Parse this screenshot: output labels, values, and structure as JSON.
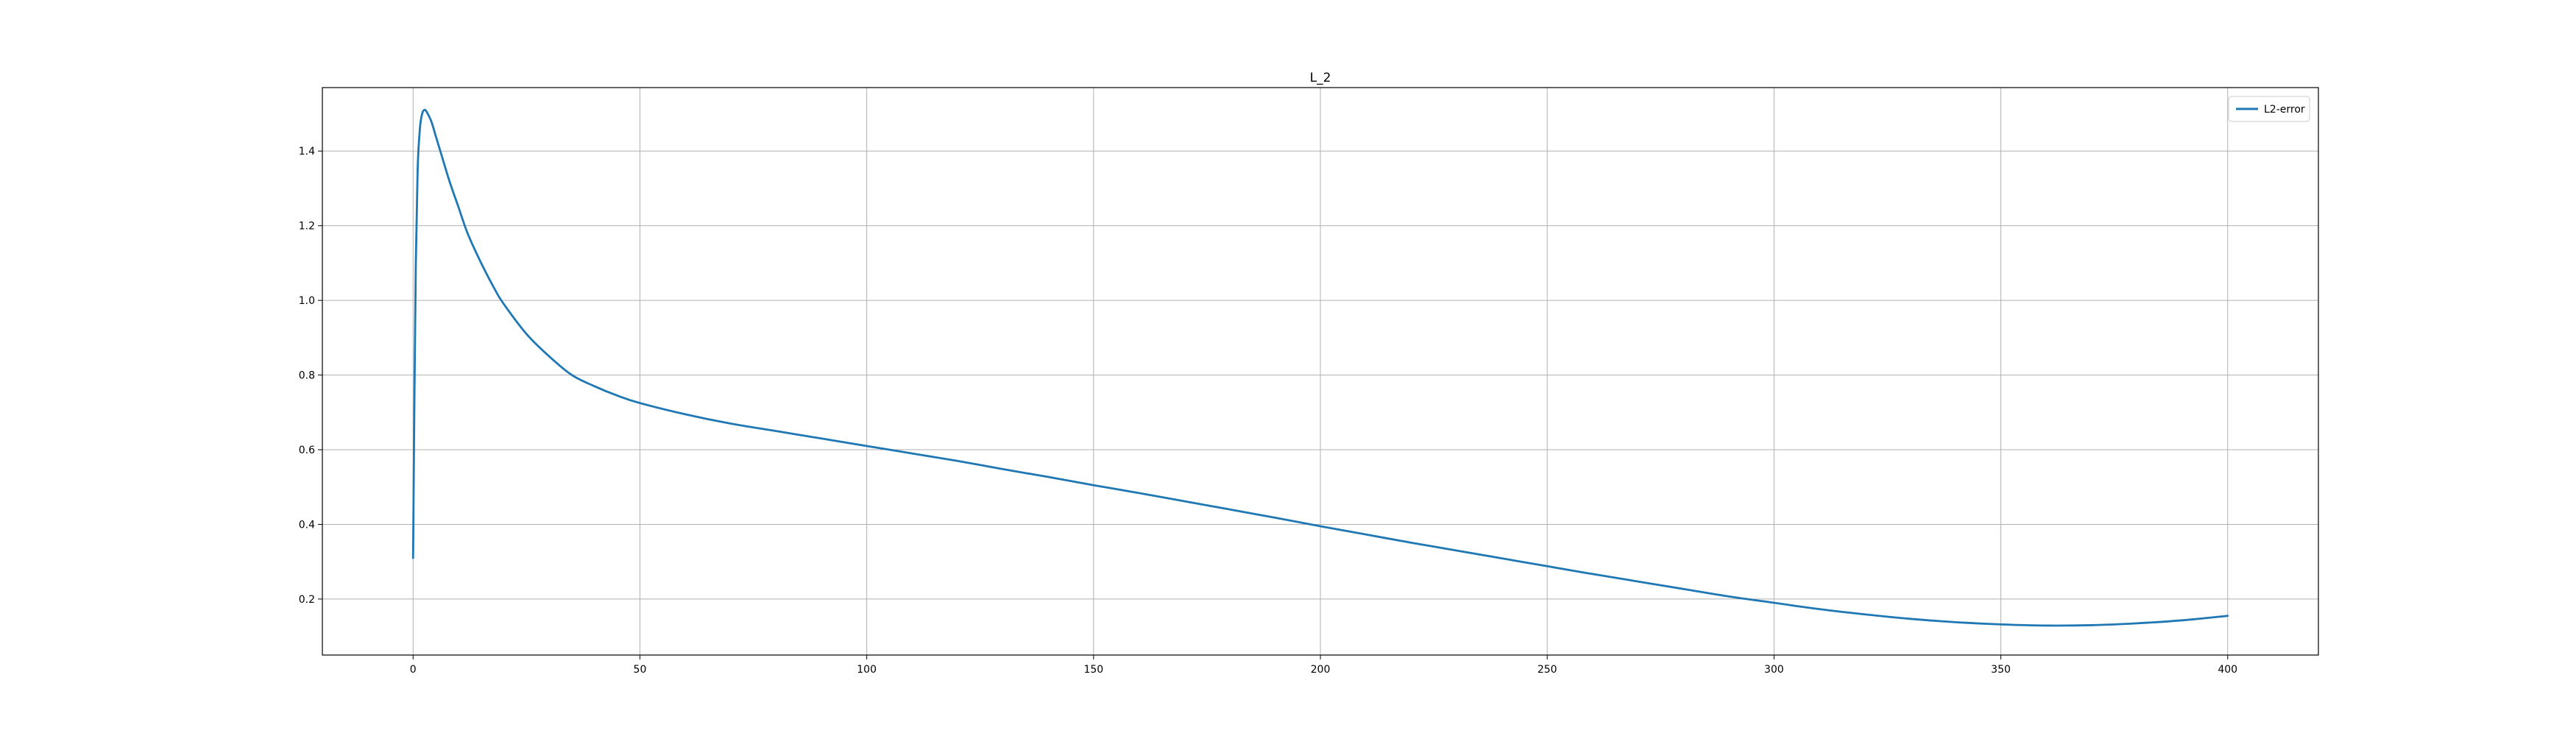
{
  "chart_data": {
    "type": "line",
    "title": "L_2",
    "xlabel": "",
    "ylabel": "",
    "xlim": [
      -20,
      420
    ],
    "ylim": [
      0.05,
      1.57
    ],
    "xticks": [
      0,
      50,
      100,
      150,
      200,
      250,
      300,
      350,
      400
    ],
    "yticks": [
      0.2,
      0.4,
      0.6,
      0.8,
      1.0,
      1.2,
      1.4
    ],
    "xtick_labels": [
      "0",
      "50",
      "100",
      "150",
      "200",
      "250",
      "300",
      "350",
      "400"
    ],
    "ytick_labels": [
      "0.2",
      "0.4",
      "0.6",
      "0.8",
      "1.0",
      "1.2",
      "1.4"
    ],
    "grid": true,
    "legend_position": "top-right",
    "series": [
      {
        "name": "L2-error",
        "color": "#1f77b4",
        "x": [
          0,
          0.3,
          0.6,
          1,
          1.5,
          2,
          2.5,
          3,
          4,
          5,
          6,
          8,
          10,
          12,
          15,
          18,
          20,
          25,
          30,
          35,
          40,
          45,
          50,
          60,
          70,
          80,
          90,
          100,
          110,
          120,
          130,
          140,
          150,
          160,
          170,
          180,
          190,
          200,
          210,
          220,
          230,
          240,
          250,
          260,
          270,
          280,
          290,
          300,
          310,
          320,
          330,
          340,
          350,
          360,
          370,
          380,
          390,
          400
        ],
        "y": [
          0.31,
          0.75,
          1.1,
          1.35,
          1.46,
          1.5,
          1.51,
          1.505,
          1.48,
          1.44,
          1.4,
          1.32,
          1.25,
          1.18,
          1.1,
          1.03,
          0.99,
          0.91,
          0.85,
          0.8,
          0.77,
          0.745,
          0.725,
          0.695,
          0.67,
          0.65,
          0.63,
          0.61,
          0.59,
          0.57,
          0.548,
          0.527,
          0.505,
          0.484,
          0.462,
          0.44,
          0.418,
          0.395,
          0.373,
          0.351,
          0.33,
          0.309,
          0.288,
          0.267,
          0.247,
          0.227,
          0.207,
          0.19,
          0.173,
          0.159,
          0.147,
          0.138,
          0.132,
          0.129,
          0.13,
          0.135,
          0.143,
          0.155
        ]
      }
    ]
  }
}
